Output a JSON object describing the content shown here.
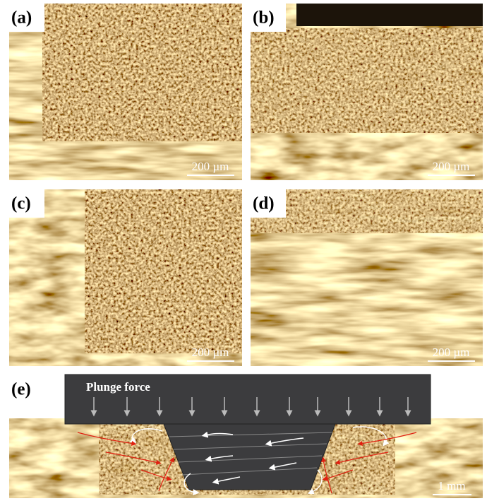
{
  "panels": [
    {
      "label": "(a)",
      "scale_bar": "200 µm"
    },
    {
      "label": "(b)",
      "scale_bar": "200 µm"
    },
    {
      "label": "(c)",
      "scale_bar": "200 µm"
    },
    {
      "label": "(d)",
      "scale_bar": "200 µm"
    }
  ],
  "panel_e": {
    "label": "(e)",
    "tool_label": "Plunge force",
    "scale_bar": "1 mm"
  }
}
